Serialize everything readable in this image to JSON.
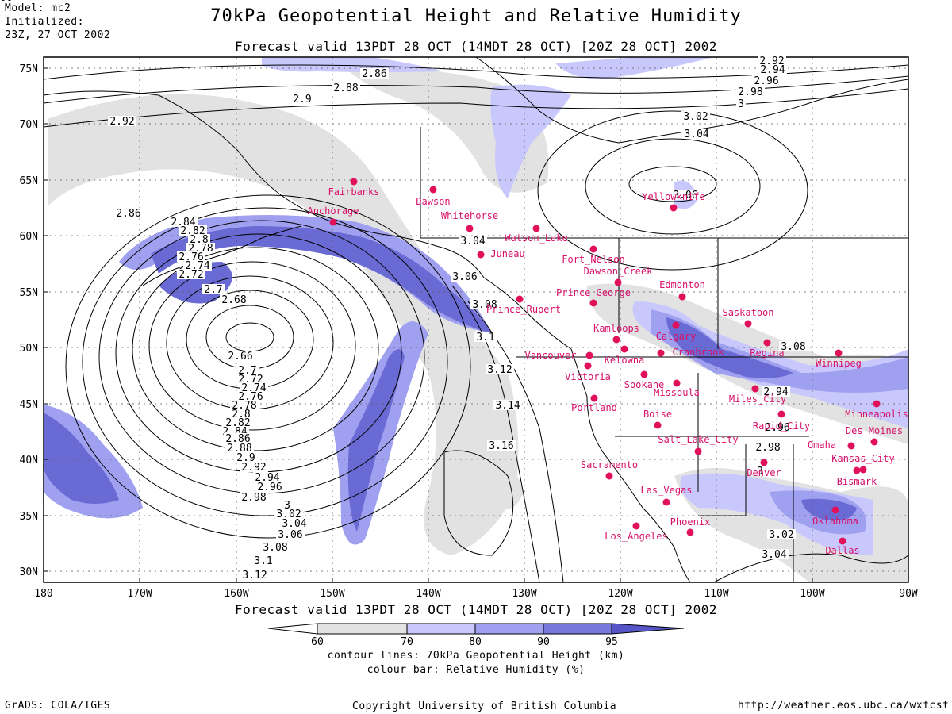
{
  "header": {
    "model_lines": [
      "Model: mc2",
      "Initialized:",
      "23Z, 27 OCT 2002"
    ],
    "title": "70kPa Geopotential Height and Relative Humidity",
    "valid_top": "Forecast valid 13PDT 28 OCT (14MDT 28 OCT) [20Z 28 OCT] 2002"
  },
  "footer": {
    "valid_bottom": "Forecast valid 13PDT 28 OCT (14MDT 28 OCT) [20Z 28 OCT] 2002",
    "legend_line1": "contour lines: 70kPa Geopotential Height (km)",
    "legend_line2": "colour bar: Relative Humidity (%)",
    "grads": "GrADS: COLA/IGES",
    "copyright": "Copyright University of British Columbia",
    "url": "http://weather.eos.ubc.ca/wxfcst"
  },
  "colorbar": {
    "levels": [
      "60",
      "70",
      "80",
      "90",
      "95"
    ],
    "colors": [
      "#ffffff",
      "#e2e2e2",
      "#c8c8fc",
      "#a0a0f0",
      "#7878dc",
      "#5555c8"
    ]
  },
  "map": {
    "lat_labels": [
      "75N",
      "70N",
      "65N",
      "60N",
      "55N",
      "50N",
      "45N",
      "40N",
      "35N",
      "30N"
    ],
    "lon_labels": [
      "180",
      "170W",
      "160W",
      "150W",
      "140W",
      "130W",
      "120W",
      "110W",
      "100W",
      "90W"
    ],
    "height_labels": [
      "2.86",
      "2.88",
      "2.9",
      "2.92",
      "2.86",
      "2.84",
      "2.82",
      "2.8",
      "2.78",
      "2.76",
      "2.74",
      "2.72",
      "2.7",
      "2.68",
      "2.66",
      "2.7",
      "2.72",
      "2.74",
      "2.76",
      "2.78",
      "2.8",
      "2.82",
      "2.84",
      "2.86",
      "2.88",
      "2.9",
      "2.92",
      "2.94",
      "2.96",
      "2.98",
      "3",
      "3.02",
      "3.04",
      "3.06",
      "3.08",
      "3.1",
      "3.12",
      "3.04",
      "3.06",
      "3.08",
      "3.1",
      "3.12",
      "3.14",
      "3.16",
      "2.92",
      "2.94",
      "2.96",
      "2.98",
      "3",
      "3.02",
      "3.04",
      "3.06",
      "3.08",
      "2.94",
      "2.96",
      "2.98",
      "3",
      "3.02",
      "3.04",
      "3.06"
    ],
    "cities": [
      "Fairbanks",
      "Dawson",
      "Anchorage",
      "Whitehorse",
      "Watson_Lake",
      "Juneau",
      "Yellowknife",
      "Fort_Nelson",
      "Dawson_Creek",
      "Prince_George",
      "Edmonton",
      "Prince_Rupert",
      "Kamloops",
      "Calgary",
      "Saskatoon",
      "Kelowna",
      "Cranbrook",
      "Regina",
      "Winnipeg",
      "Vancouver",
      "Victoria",
      "Spokane",
      "Missoula",
      "Portland",
      "Miles_City",
      "Minneapolis",
      "Boise",
      "Rapid_City",
      "Des_Moines",
      "Salt_Lake_City",
      "Omaha",
      "Kansas_City",
      "Sacramento",
      "Denver",
      "Bismark",
      "Las_Vegas",
      "Oklahoma",
      "Los_Angeles",
      "Phoenix",
      "Dallas"
    ]
  }
}
